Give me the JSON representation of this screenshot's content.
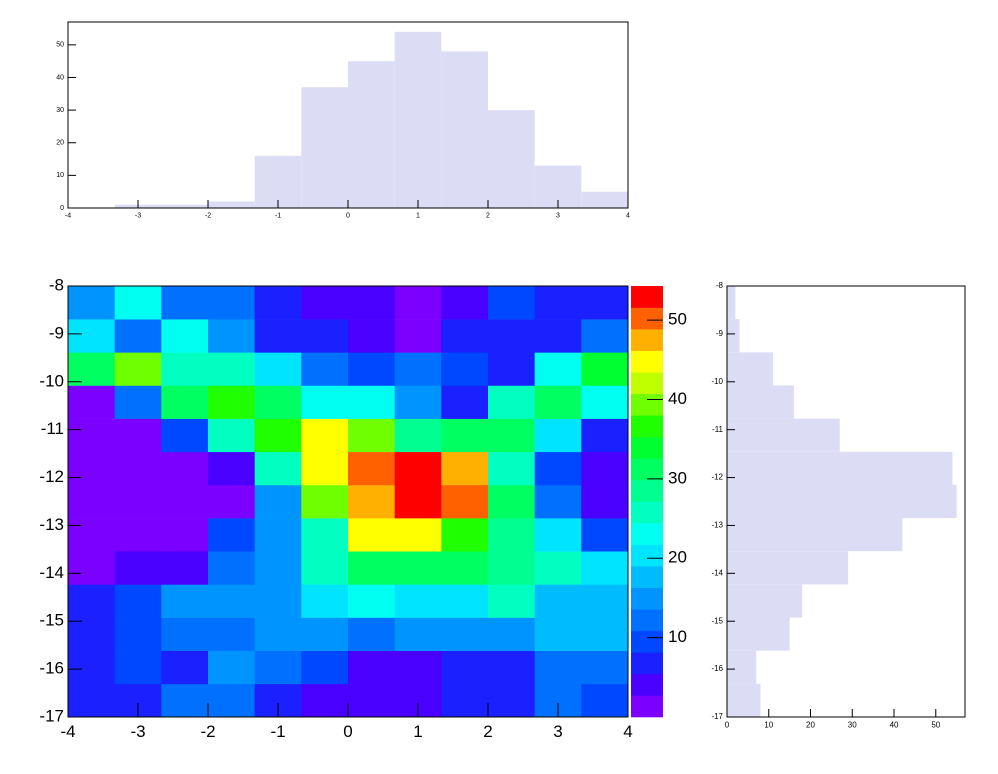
{
  "chart_data": [
    {
      "type": "histogram",
      "orientation": "vertical",
      "bins": [
        -4,
        -3.333,
        -2.667,
        -2,
        -1.333,
        -0.667,
        0,
        0.667,
        1.333,
        2,
        2.667,
        3.333,
        4
      ],
      "values": [
        0,
        1,
        1,
        2,
        16,
        37,
        45,
        54,
        48,
        30,
        13,
        5
      ],
      "color": "#dcdcf5",
      "xlim": [
        -4,
        4
      ],
      "xticks": [
        -4,
        -3,
        -2,
        -1,
        0,
        1,
        2,
        3,
        4
      ],
      "ylim": [
        0,
        57
      ],
      "yticks": [
        0,
        10,
        20,
        30,
        40,
        50
      ]
    },
    {
      "type": "heatmap",
      "x_bins": [
        -4,
        -3.333,
        -2.667,
        -2,
        -1.333,
        -0.667,
        0,
        0.667,
        1.333,
        2,
        2.667,
        3.333,
        4
      ],
      "y_bins": [
        -17,
        -16.308,
        -15.615,
        -14.923,
        -14.231,
        -13.538,
        -12.846,
        -12.154,
        -11.462,
        -10.769,
        -10.077,
        -9.385,
        -8.692,
        -8
      ],
      "z": [
        [
          8,
          8,
          13,
          13,
          8,
          5,
          5,
          5,
          6,
          6,
          12,
          9
        ],
        [
          7,
          9,
          8,
          16,
          12,
          9,
          5,
          5,
          7,
          7,
          13,
          13
        ],
        [
          7,
          9,
          13,
          13,
          15,
          15,
          12,
          16,
          16,
          16,
          19,
          19
        ],
        [
          8,
          9,
          14,
          14,
          16,
          20,
          23,
          20,
          20,
          26,
          19,
          19
        ],
        [
          2,
          4,
          5,
          13,
          16,
          27,
          31,
          31,
          31,
          28,
          26,
          20
        ],
        [
          1,
          1,
          1,
          9,
          16,
          26,
          45,
          45,
          38,
          28,
          20,
          9
        ],
        [
          1,
          1,
          1,
          2,
          16,
          40,
          47,
          54,
          50,
          32,
          13,
          4
        ],
        [
          1,
          1,
          1,
          5,
          26,
          44,
          50,
          54,
          47,
          26,
          9,
          3
        ],
        [
          2,
          2,
          9,
          27,
          36,
          44,
          39,
          28,
          31,
          31,
          20,
          7
        ],
        [
          2,
          13,
          32,
          38,
          31,
          24,
          24,
          15,
          8,
          27,
          32,
          23
        ],
        [
          31,
          39,
          26,
          26,
          20,
          13,
          9,
          13,
          9,
          6,
          24,
          33
        ],
        [
          20,
          13,
          23,
          16,
          8,
          8,
          5,
          2,
          6,
          6,
          6,
          13
        ],
        [
          16,
          24,
          13,
          13,
          8,
          5,
          5,
          2,
          4,
          9,
          7,
          7
        ]
      ],
      "palette": [
        "#7c00ff",
        "#4a00ff",
        "#1a20ff",
        "#0048ff",
        "#0070ff",
        "#0094ff",
        "#00bcff",
        "#00e4ff",
        "#00fff0",
        "#00ffc0",
        "#00ff90",
        "#00ff60",
        "#00ff30",
        "#20ff00",
        "#70ff00",
        "#c0ff00",
        "#ffff00",
        "#ffb000",
        "#ff6000",
        "#ff0000"
      ],
      "zlim": [
        0,
        54.3
      ],
      "zticks": [
        10,
        20,
        30,
        40,
        50
      ],
      "xlim": [
        -4,
        4
      ],
      "xticks": [
        -4,
        -3,
        -2,
        -1,
        0,
        1,
        2,
        3,
        4
      ],
      "ylim": [
        -17,
        -8
      ],
      "yticks": [
        -17,
        -16,
        -15,
        -14,
        -13,
        -12,
        -11,
        -10,
        -9,
        -8
      ]
    },
    {
      "type": "histogram",
      "orientation": "horizontal",
      "bins": [
        -17,
        -16.308,
        -15.615,
        -14.923,
        -14.231,
        -13.538,
        -12.846,
        -12.154,
        -11.462,
        -10.769,
        -10.077,
        -9.385,
        -8.692,
        -8
      ],
      "values": [
        8,
        7,
        15,
        18,
        29,
        42,
        55,
        54,
        27,
        16,
        11,
        3,
        2
      ],
      "color": "#dcdcf5",
      "xlim": [
        0,
        57
      ],
      "xticks": [
        0,
        10,
        20,
        30,
        40,
        50
      ],
      "ylim": [
        -17,
        -8
      ],
      "yticks": [
        -17,
        -16,
        -15,
        -14,
        -13,
        -12,
        -11,
        -10,
        -9,
        -8
      ]
    }
  ]
}
